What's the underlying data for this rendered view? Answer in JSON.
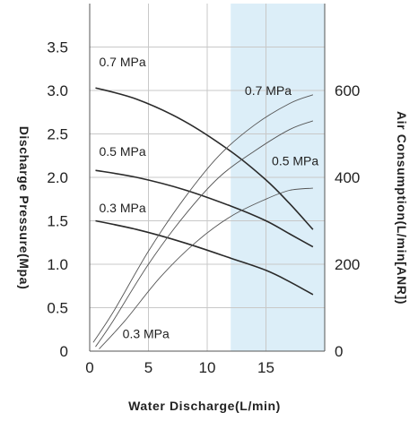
{
  "chart_data": {
    "type": "line",
    "xlabel": "Water Discharge(L/min)",
    "ylabel": "Discharge Pressure(Mpa)",
    "y2label": "Air Consumption(L/min[ANR])",
    "xlim": [
      0,
      20
    ],
    "ylim": [
      0,
      4
    ],
    "y2lim": [
      0,
      800
    ],
    "x_ticks": [
      "0",
      "5",
      "10",
      "15"
    ],
    "y_ticks": [
      "0",
      "0.5",
      "1.0",
      "1.5",
      "2.0",
      "2.5",
      "3.0",
      "3.5"
    ],
    "y2_ticks": [
      "0",
      "200",
      "400",
      "600"
    ],
    "grid": true,
    "shaded_x_range": [
      12,
      20
    ],
    "pressure_series": [
      {
        "name": "0.7 MPa",
        "axis": "left",
        "x": [
          0.5,
          4,
          8,
          12,
          15,
          17,
          19
        ],
        "y": [
          3.03,
          2.9,
          2.65,
          2.3,
          1.97,
          1.7,
          1.4
        ]
      },
      {
        "name": "0.5 MPa",
        "axis": "left",
        "x": [
          0.5,
          4,
          8,
          12,
          15,
          17,
          19
        ],
        "y": [
          2.08,
          2.0,
          1.86,
          1.67,
          1.5,
          1.35,
          1.2
        ]
      },
      {
        "name": "0.3 MPa",
        "axis": "left",
        "x": [
          0.5,
          4,
          8,
          12,
          15,
          17,
          19
        ],
        "y": [
          1.5,
          1.4,
          1.25,
          1.07,
          0.93,
          0.8,
          0.65
        ]
      }
    ],
    "air_series": [
      {
        "name": "0.7 MPa",
        "axis": "right",
        "x": [
          0.3,
          2,
          5,
          8,
          11,
          14,
          17,
          19
        ],
        "y": [
          20,
          90,
          230,
          350,
          450,
          520,
          570,
          590
        ]
      },
      {
        "name": "0.5 MPa",
        "axis": "right",
        "x": [
          0.5,
          2,
          5,
          8,
          11,
          14,
          17,
          19
        ],
        "y": [
          10,
          70,
          200,
          310,
          400,
          460,
          510,
          530
        ]
      },
      {
        "name": "0.3 MPa",
        "axis": "right",
        "x": [
          0.8,
          3,
          6,
          9,
          12,
          15,
          17,
          19
        ],
        "y": [
          5,
          70,
          170,
          250,
          310,
          350,
          370,
          375
        ]
      }
    ]
  }
}
